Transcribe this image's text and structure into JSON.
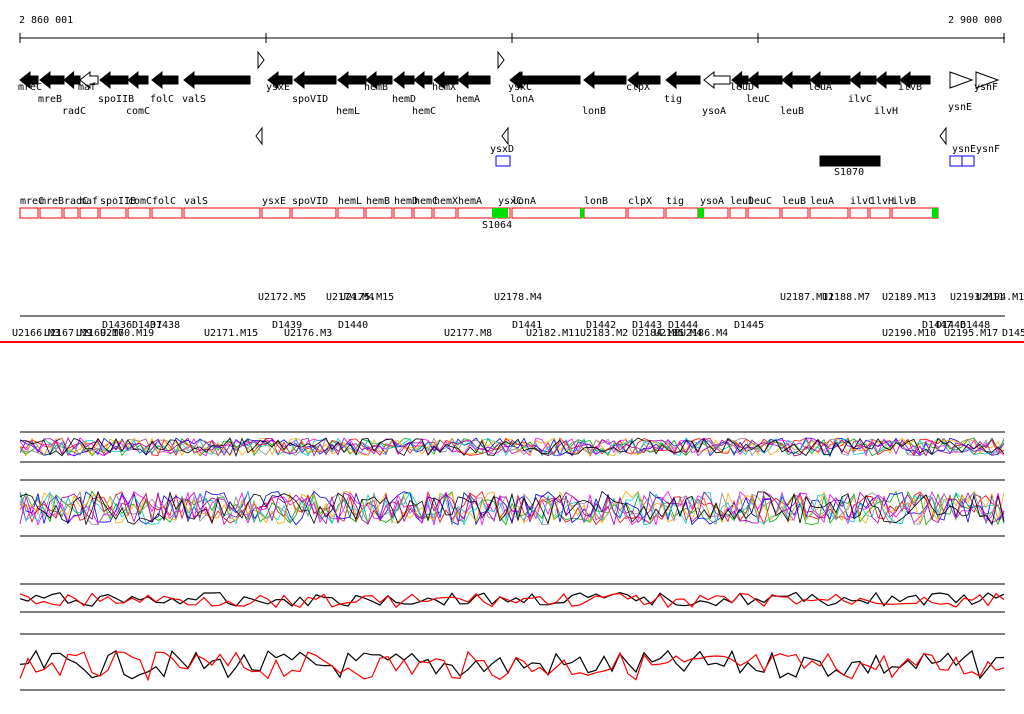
{
  "coordinates": {
    "start_label": "2 860 001",
    "end_label": "2 900 000"
  },
  "colors": {
    "gene_fill": "#000000",
    "outline": "#000000",
    "feature_box": "#0000ff",
    "track_border": "#ff0000",
    "highlight": "#00dd00",
    "profile_main": "#000000",
    "profile_red": "#ff0000"
  },
  "genes": [
    {
      "name": "mreC",
      "strand": "-",
      "row": "a"
    },
    {
      "name": "mreB",
      "strand": "-",
      "row": "b"
    },
    {
      "name": "radC",
      "strand": "-",
      "row": "c"
    },
    {
      "name": "maf",
      "strand": "-",
      "row": "a",
      "open": true
    },
    {
      "name": "spoIIB",
      "strand": "-",
      "row": "b"
    },
    {
      "name": "comC",
      "strand": "-",
      "row": "c"
    },
    {
      "name": "folC",
      "strand": "-",
      "row": "b"
    },
    {
      "name": "valS",
      "strand": "-",
      "row": "b"
    },
    {
      "name": "ysxE",
      "strand": "-",
      "row": "a"
    },
    {
      "name": "spoVID",
      "strand": "-",
      "row": "b"
    },
    {
      "name": "hemL",
      "strand": "-",
      "row": "c"
    },
    {
      "name": "hemB",
      "strand": "-",
      "row": "a"
    },
    {
      "name": "hemD",
      "strand": "-",
      "row": "b"
    },
    {
      "name": "hemC",
      "strand": "-",
      "row": "c"
    },
    {
      "name": "hemX",
      "strand": "-",
      "row": "a"
    },
    {
      "name": "hemA",
      "strand": "-",
      "row": "b"
    },
    {
      "name": "ysxC",
      "strand": "-",
      "row": "a"
    },
    {
      "name": "lonA",
      "strand": "-",
      "row": "b"
    },
    {
      "name": "lonB",
      "strand": "-",
      "row": "c"
    },
    {
      "name": "clpX",
      "strand": "-",
      "row": "a"
    },
    {
      "name": "tig",
      "strand": "-",
      "row": "b"
    },
    {
      "name": "ysoA",
      "strand": "-",
      "row": "c",
      "open": true
    },
    {
      "name": "leuD",
      "strand": "-",
      "row": "a"
    },
    {
      "name": "leuC",
      "strand": "-",
      "row": "b"
    },
    {
      "name": "leuB",
      "strand": "-",
      "row": "c"
    },
    {
      "name": "leuA",
      "strand": "-",
      "row": "a"
    },
    {
      "name": "ilvC",
      "strand": "-",
      "row": "b"
    },
    {
      "name": "ilvH",
      "strand": "-",
      "row": "c"
    },
    {
      "name": "ilvB",
      "strand": "-",
      "row": "a"
    },
    {
      "name": "ysnE",
      "strand": "+",
      "row": "b"
    },
    {
      "name": "ysnF",
      "strand": "+",
      "row": "a"
    }
  ],
  "features": [
    {
      "name": "ysxD",
      "type": "box"
    },
    {
      "name": "S1070",
      "type": "filled"
    },
    {
      "name": "ysnE",
      "type": "box"
    },
    {
      "name": "ysnF",
      "type": "box"
    }
  ],
  "track_labels": [
    "mreC",
    "mreB",
    "radC",
    "maf",
    "spoIIB",
    "comC",
    "folC",
    "valS",
    "ysxE",
    "spoVID",
    "hemL",
    "hemB",
    "hemD",
    "hemC",
    "hemX",
    "hemA",
    "ysxC",
    "lonA",
    "lonB",
    "clpX",
    "tig",
    "ysoA",
    "leuD",
    "leuC",
    "leuB",
    "leuA",
    "ilvC",
    "ilvH",
    "ilvB"
  ],
  "track_tag": "S1064",
  "segments_upper": [
    "U2172.M5",
    "U2174.M4",
    "U2175.M15",
    "U2178.M4",
    "U2187.M11",
    "U2188.M7",
    "U2189.M13",
    "U2193.M11",
    "U2194.M1"
  ],
  "segments_mid": [
    "D1436",
    "D1437",
    "D1438",
    "D1439",
    "D1440",
    "D1441",
    "D1442",
    "D1443",
    "D1444",
    "D1445",
    "D1446",
    "D1447",
    "D1448"
  ],
  "segments_lower": [
    "U2166.M3",
    "U2167.M9",
    "U2169.M6",
    "U2170.M19",
    "U2171.M15",
    "U2176.M3",
    "U2177.M8",
    "U2182.M11",
    "U2183.M2",
    "U2184.M8",
    "U2185.M4",
    "U2186.M4",
    "U2190.M10",
    "U2195.M17",
    "D145"
  ]
}
